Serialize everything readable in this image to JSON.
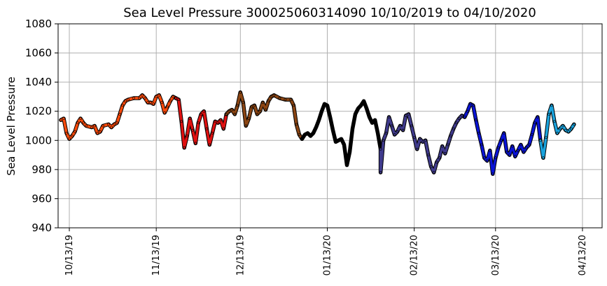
{
  "chart_data": {
    "type": "line",
    "title": "Sea Level Pressure 300025060314090  10/10/2019 to 04/10/2020",
    "ylabel": "Sea Level Pressure",
    "xlabel": "",
    "ylim": [
      940,
      1080
    ],
    "yticks": [
      940,
      960,
      980,
      1000,
      1020,
      1040,
      1060,
      1080
    ],
    "xlim": [
      "2019-10-09",
      "2020-04-20"
    ],
    "xticks": [
      {
        "date": "2019-10-13",
        "label": "10/13/19"
      },
      {
        "date": "2019-11-13",
        "label": "11/13/19"
      },
      {
        "date": "2019-12-13",
        "label": "12/13/19"
      },
      {
        "date": "2020-01-13",
        "label": "01/13/20"
      },
      {
        "date": "2020-02-13",
        "label": "02/13/20"
      },
      {
        "date": "2020-03-13",
        "label": "03/13/20"
      },
      {
        "date": "2020-04-13",
        "label": "04/13/20"
      }
    ],
    "grid": true,
    "legend": "none",
    "segments": [
      {
        "color": "#ff4a0a",
        "points": [
          [
            "2019-10-10",
            1014
          ],
          [
            "2019-10-11",
            1015
          ],
          [
            "2019-10-12",
            1005
          ],
          [
            "2019-10-13",
            1001
          ],
          [
            "2019-10-14",
            1003
          ],
          [
            "2019-10-15",
            1006
          ],
          [
            "2019-10-16",
            1012
          ],
          [
            "2019-10-17",
            1015
          ],
          [
            "2019-10-18",
            1012
          ],
          [
            "2019-10-19",
            1010
          ],
          [
            "2019-10-21",
            1009
          ],
          [
            "2019-10-22",
            1010
          ],
          [
            "2019-10-23",
            1005
          ],
          [
            "2019-10-24",
            1006
          ],
          [
            "2019-10-25",
            1010
          ],
          [
            "2019-10-27",
            1011
          ],
          [
            "2019-10-28",
            1009
          ],
          [
            "2019-10-29",
            1011
          ],
          [
            "2019-10-30",
            1012
          ],
          [
            "2019-10-31",
            1018
          ],
          [
            "2019-11-01",
            1024
          ],
          [
            "2019-11-02",
            1027
          ],
          [
            "2019-11-03",
            1028
          ],
          [
            "2019-11-05",
            1029
          ],
          [
            "2019-11-07",
            1029
          ],
          [
            "2019-11-08",
            1031
          ],
          [
            "2019-11-09",
            1029
          ],
          [
            "2019-11-10",
            1026
          ],
          [
            "2019-11-11",
            1026
          ],
          [
            "2019-11-12",
            1025
          ],
          [
            "2019-11-13",
            1030
          ],
          [
            "2019-11-14",
            1031
          ],
          [
            "2019-11-15",
            1026
          ],
          [
            "2019-11-16",
            1019
          ],
          [
            "2019-11-17",
            1023
          ],
          [
            "2019-11-18",
            1027
          ],
          [
            "2019-11-19",
            1030
          ],
          [
            "2019-11-20",
            1029
          ]
        ]
      },
      {
        "color": "#e01010",
        "points": [
          [
            "2019-11-20",
            1029
          ],
          [
            "2019-11-21",
            1028
          ],
          [
            "2019-11-22",
            1013
          ],
          [
            "2019-11-23",
            995
          ],
          [
            "2019-11-24",
            1003
          ],
          [
            "2019-11-25",
            1015
          ],
          [
            "2019-11-26",
            1007
          ],
          [
            "2019-11-27",
            998
          ],
          [
            "2019-11-28",
            1012
          ],
          [
            "2019-11-29",
            1018
          ],
          [
            "2019-11-30",
            1020
          ],
          [
            "2019-12-01",
            1008
          ],
          [
            "2019-12-02",
            997
          ],
          [
            "2019-12-03",
            1005
          ],
          [
            "2019-12-04",
            1013
          ],
          [
            "2019-12-05",
            1012
          ],
          [
            "2019-12-06",
            1014
          ],
          [
            "2019-12-07",
            1008
          ],
          [
            "2019-12-08",
            1018
          ]
        ]
      },
      {
        "color": "#8b4513",
        "points": [
          [
            "2019-12-08",
            1018
          ],
          [
            "2019-12-09",
            1020
          ],
          [
            "2019-12-10",
            1021
          ],
          [
            "2019-12-11",
            1018
          ],
          [
            "2019-12-12",
            1024
          ],
          [
            "2019-12-13",
            1033
          ],
          [
            "2019-12-14",
            1026
          ],
          [
            "2019-12-15",
            1010
          ],
          [
            "2019-12-16",
            1015
          ],
          [
            "2019-12-17",
            1023
          ],
          [
            "2019-12-18",
            1024
          ],
          [
            "2019-12-19",
            1018
          ],
          [
            "2019-12-20",
            1020
          ],
          [
            "2019-12-21",
            1026
          ],
          [
            "2019-12-22",
            1021
          ],
          [
            "2019-12-23",
            1027
          ],
          [
            "2019-12-24",
            1030
          ],
          [
            "2019-12-25",
            1031
          ],
          [
            "2019-12-27",
            1029
          ],
          [
            "2019-12-29",
            1028
          ],
          [
            "2019-12-31",
            1028
          ],
          [
            "2020-01-01",
            1024
          ],
          [
            "2020-01-02",
            1011
          ],
          [
            "2020-01-03",
            1004
          ],
          [
            "2020-01-04",
            1001
          ]
        ]
      },
      {
        "color": "#000000",
        "points": [
          [
            "2020-01-04",
            1001
          ],
          [
            "2020-01-05",
            1004
          ],
          [
            "2020-01-06",
            1005
          ],
          [
            "2020-01-07",
            1003
          ],
          [
            "2020-01-08",
            1005
          ],
          [
            "2020-01-09",
            1009
          ],
          [
            "2020-01-10",
            1014
          ],
          [
            "2020-01-11",
            1020
          ],
          [
            "2020-01-12",
            1025
          ],
          [
            "2020-01-13",
            1024
          ],
          [
            "2020-01-14",
            1016
          ],
          [
            "2020-01-15",
            1007
          ],
          [
            "2020-01-16",
            999
          ],
          [
            "2020-01-17",
            1000
          ],
          [
            "2020-01-18",
            1001
          ],
          [
            "2020-01-19",
            997
          ],
          [
            "2020-01-20",
            983
          ],
          [
            "2020-01-21",
            992
          ],
          [
            "2020-01-22",
            1008
          ],
          [
            "2020-01-23",
            1018
          ],
          [
            "2020-01-24",
            1022
          ],
          [
            "2020-01-25",
            1024
          ],
          [
            "2020-01-26",
            1027
          ],
          [
            "2020-01-27",
            1022
          ],
          [
            "2020-01-28",
            1016
          ],
          [
            "2020-01-29",
            1012
          ],
          [
            "2020-01-30",
            1014
          ],
          [
            "2020-01-31",
            1005
          ],
          [
            "2020-02-01",
            994
          ]
        ]
      },
      {
        "color": "#3f3a8c",
        "points": [
          [
            "2020-02-01",
            994
          ],
          [
            "2020-02-01",
            978
          ],
          [
            "2020-02-02",
            1000
          ],
          [
            "2020-02-03",
            1005
          ],
          [
            "2020-02-04",
            1016
          ],
          [
            "2020-02-05",
            1010
          ],
          [
            "2020-02-06",
            1004
          ],
          [
            "2020-02-07",
            1006
          ],
          [
            "2020-02-08",
            1010
          ],
          [
            "2020-02-09",
            1007
          ],
          [
            "2020-02-10",
            1017
          ],
          [
            "2020-02-11",
            1018
          ],
          [
            "2020-02-12",
            1010
          ],
          [
            "2020-02-13",
            1002
          ],
          [
            "2020-02-14",
            994
          ],
          [
            "2020-02-15",
            1001
          ],
          [
            "2020-02-16",
            999
          ],
          [
            "2020-02-17",
            1000
          ],
          [
            "2020-02-18",
            990
          ],
          [
            "2020-02-19",
            982
          ],
          [
            "2020-02-20",
            978
          ],
          [
            "2020-02-21",
            985
          ],
          [
            "2020-02-22",
            988
          ],
          [
            "2020-02-23",
            996
          ],
          [
            "2020-02-24",
            991
          ],
          [
            "2020-02-25",
            997
          ],
          [
            "2020-02-26",
            1003
          ],
          [
            "2020-02-27",
            1008
          ],
          [
            "2020-02-28",
            1012
          ],
          [
            "2020-02-29",
            1015
          ],
          [
            "2020-03-01",
            1017
          ],
          [
            "2020-03-02",
            1016
          ]
        ]
      },
      {
        "color": "#0a14d6",
        "points": [
          [
            "2020-03-02",
            1016
          ],
          [
            "2020-03-03",
            1020
          ],
          [
            "2020-03-04",
            1025
          ],
          [
            "2020-03-05",
            1024
          ],
          [
            "2020-03-06",
            1014
          ],
          [
            "2020-03-07",
            1005
          ],
          [
            "2020-03-08",
            997
          ],
          [
            "2020-03-09",
            988
          ],
          [
            "2020-03-10",
            986
          ],
          [
            "2020-03-11",
            993
          ],
          [
            "2020-03-12",
            977
          ],
          [
            "2020-03-13",
            988
          ],
          [
            "2020-03-14",
            995
          ],
          [
            "2020-03-15",
            1000
          ],
          [
            "2020-03-16",
            1005
          ],
          [
            "2020-03-17",
            992
          ],
          [
            "2020-03-18",
            990
          ],
          [
            "2020-03-19",
            996
          ],
          [
            "2020-03-20",
            989
          ],
          [
            "2020-03-21",
            993
          ],
          [
            "2020-03-22",
            997
          ],
          [
            "2020-03-23",
            992
          ],
          [
            "2020-03-24",
            995
          ],
          [
            "2020-03-25",
            997
          ],
          [
            "2020-03-26",
            1004
          ],
          [
            "2020-03-27",
            1012
          ],
          [
            "2020-03-28",
            1016
          ],
          [
            "2020-03-29",
            1000
          ]
        ]
      },
      {
        "color": "#1aa3dd",
        "points": [
          [
            "2020-03-29",
            1000
          ],
          [
            "2020-03-30",
            988
          ],
          [
            "2020-03-31",
            1002
          ],
          [
            "2020-04-01",
            1018
          ],
          [
            "2020-04-02",
            1024
          ],
          [
            "2020-04-03",
            1013
          ],
          [
            "2020-04-04",
            1005
          ],
          [
            "2020-04-05",
            1008
          ],
          [
            "2020-04-06",
            1010
          ],
          [
            "2020-04-07",
            1007
          ],
          [
            "2020-04-08",
            1006
          ],
          [
            "2020-04-09",
            1008
          ],
          [
            "2020-04-10",
            1011
          ]
        ]
      }
    ]
  }
}
